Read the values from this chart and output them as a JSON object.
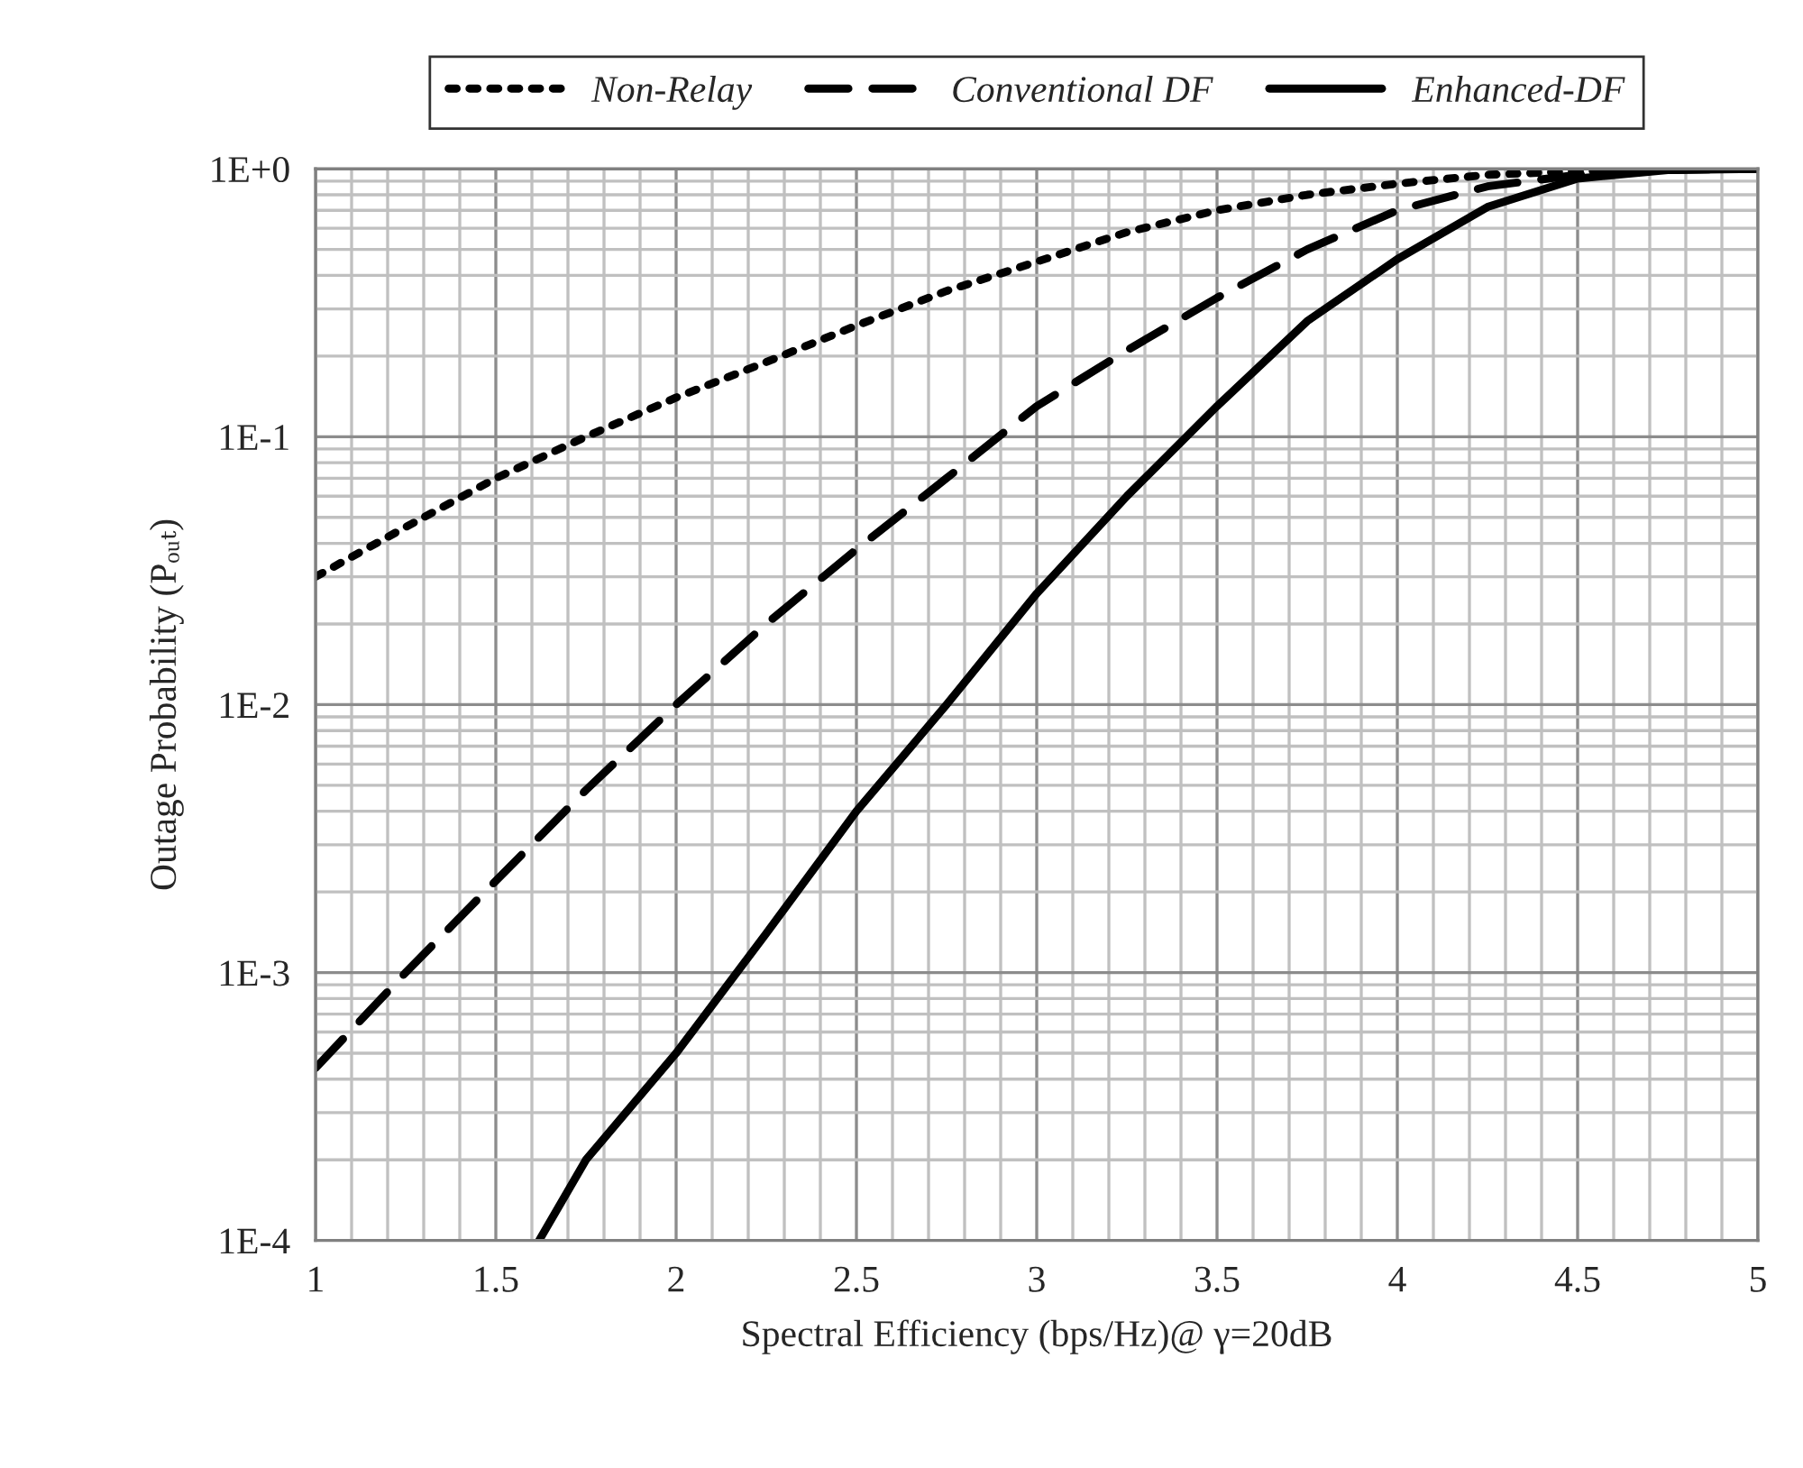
{
  "chart_data": {
    "type": "line",
    "xlabel": "Spectral Efficiency (bps/Hz)@ γ=20dB",
    "ylabel": "Outage Probability (Pₒᵤₜ)",
    "series": [
      {
        "name": "Non-Relay",
        "color": "#000000",
        "line_style": "dotted",
        "x": [
          1,
          1.25,
          1.5,
          1.75,
          2,
          2.25,
          2.5,
          2.75,
          3,
          3.25,
          3.5,
          3.75,
          4,
          4.25,
          4.5,
          4.75,
          5
        ],
        "values": [
          0.03,
          0.046,
          0.07,
          0.1,
          0.14,
          0.19,
          0.26,
          0.35,
          0.45,
          0.58,
          0.7,
          0.8,
          0.88,
          0.95,
          0.98,
          0.995,
          1.0
        ]
      },
      {
        "name": "Conventional DF",
        "color": "#000000",
        "line_style": "dashed",
        "x": [
          1,
          1.25,
          1.5,
          1.75,
          2,
          2.25,
          2.5,
          2.75,
          3,
          3.25,
          3.5,
          3.75,
          4,
          4.25,
          4.5,
          4.75,
          5
        ],
        "values": [
          0.00044,
          0.001,
          0.0022,
          0.0048,
          0.01,
          0.02,
          0.038,
          0.07,
          0.13,
          0.21,
          0.33,
          0.5,
          0.7,
          0.86,
          0.95,
          0.99,
          1.0
        ]
      },
      {
        "name": "Enhanced-DF",
        "color": "#000000",
        "line_style": "solid",
        "x": [
          1.62,
          1.75,
          2,
          2.25,
          2.5,
          2.75,
          3,
          3.25,
          3.5,
          3.75,
          4,
          4.25,
          4.5,
          4.75,
          5
        ],
        "values": [
          0.0001,
          0.0002,
          0.0005,
          0.0014,
          0.004,
          0.01,
          0.026,
          0.06,
          0.13,
          0.27,
          0.46,
          0.72,
          0.92,
          0.99,
          1.0
        ]
      }
    ],
    "log": "y",
    "xlim": [
      1,
      5
    ],
    "xticks": [
      1,
      1.5,
      2,
      2.5,
      3,
      3.5,
      4,
      4.5,
      5
    ],
    "ylim": [
      0.0001,
      1
    ],
    "yticks": [
      {
        "value": 0.0001,
        "label": "1E-4"
      },
      {
        "value": 0.001,
        "label": "1E-3"
      },
      {
        "value": 0.01,
        "label": "1E-2"
      },
      {
        "value": 0.1,
        "label": "1E-1"
      },
      {
        "value": 1,
        "label": "1E+0"
      }
    ],
    "grid": true,
    "legend": "top",
    "marker": "none"
  }
}
